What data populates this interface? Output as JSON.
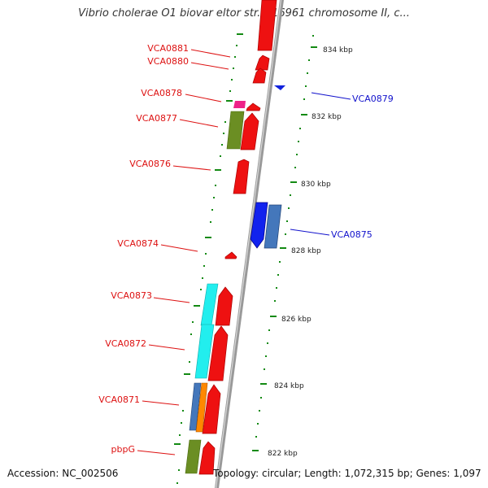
{
  "header": {
    "title": "Vibrio cholerae O1 biovar eltor str. N16961 chromosome II, c..."
  },
  "footer": {
    "accession": "Accession: NC_002506",
    "topology": "Topology: circular; Length: 1,072,315 bp; Genes: 1,097"
  },
  "colors": {
    "forward_cds": "#ee1111",
    "reverse_cds": "#1122dd",
    "label_left": "#dd1111",
    "label_right": "#1111cc",
    "ruler": "#138a13",
    "backbone": "#999999"
  },
  "gene_labels": [
    {
      "id": "VCA0881",
      "text": "VCA0881",
      "side": "left"
    },
    {
      "id": "VCA0880",
      "text": "VCA0880",
      "side": "left"
    },
    {
      "id": "VCA0878",
      "text": "VCA0878",
      "side": "left"
    },
    {
      "id": "VCA0877",
      "text": "VCA0877",
      "side": "left"
    },
    {
      "id": "VCA0876",
      "text": "VCA0876",
      "side": "left"
    },
    {
      "id": "VCA0874",
      "text": "VCA0874",
      "side": "left"
    },
    {
      "id": "VCA0873",
      "text": "VCA0873",
      "side": "left"
    },
    {
      "id": "VCA0872",
      "text": "VCA0872",
      "side": "left"
    },
    {
      "id": "VCA0871",
      "text": "VCA0871",
      "side": "left"
    },
    {
      "id": "pbpG",
      "text": "pbpG",
      "side": "left"
    },
    {
      "id": "VCA0879",
      "text": "VCA0879",
      "side": "right"
    },
    {
      "id": "VCA0875",
      "text": "VCA0875",
      "side": "right"
    }
  ],
  "kbp_labels": [
    {
      "id": "834",
      "text": "834 kbp"
    },
    {
      "id": "832",
      "text": "832 kbp"
    },
    {
      "id": "830",
      "text": "830 kbp"
    },
    {
      "id": "828",
      "text": "828 kbp"
    },
    {
      "id": "826",
      "text": "826 kbp"
    },
    {
      "id": "824",
      "text": "824 kbp"
    },
    {
      "id": "822",
      "text": "822 kbp"
    }
  ]
}
